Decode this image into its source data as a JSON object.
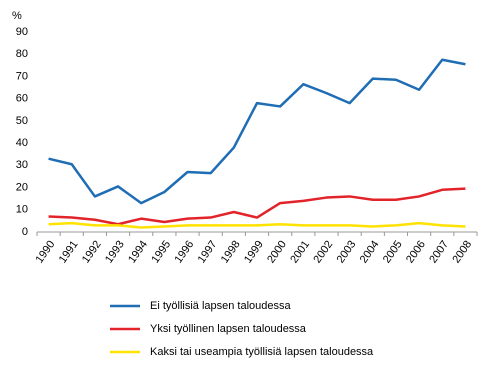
{
  "chart_data": {
    "type": "line",
    "y_label": "%",
    "categories": [
      "1990",
      "1991",
      "1992",
      "1993",
      "1994",
      "1995",
      "1996",
      "1997",
      "1998",
      "1999",
      "2000",
      "2001",
      "2002",
      "2003",
      "2004",
      "2005",
      "2006",
      "2007",
      "2008"
    ],
    "series": [
      {
        "name": "Ei työllisiä lapsen taloudessa",
        "color": "#1f6db4",
        "values": [
          33,
          30.5,
          16,
          20.5,
          13,
          18,
          27,
          26.5,
          38,
          58,
          56.5,
          66.5,
          62.5,
          58,
          69,
          68.5,
          64,
          77.5,
          75.5
        ]
      },
      {
        "name": "Yksi työllinen lapsen taloudessa",
        "color": "#e2232a",
        "values": [
          7,
          6.5,
          5.5,
          3.5,
          6,
          4.5,
          6,
          6.5,
          9,
          6.5,
          13,
          14,
          15.5,
          16,
          14.5,
          14.5,
          16,
          19,
          19.5
        ]
      },
      {
        "name": "Kaksi tai useampia työllisiä lapsen taloudessa",
        "color": "#ffe200",
        "values": [
          3.5,
          4,
          3,
          3,
          2,
          2.5,
          3,
          3,
          3,
          3,
          3.5,
          3,
          3,
          3,
          2.5,
          3,
          4,
          3,
          2.5
        ]
      }
    ],
    "ylim": [
      0,
      90
    ],
    "yticks": [
      0,
      10,
      20,
      30,
      40,
      50,
      60,
      70,
      80,
      90
    ],
    "grid": false
  }
}
